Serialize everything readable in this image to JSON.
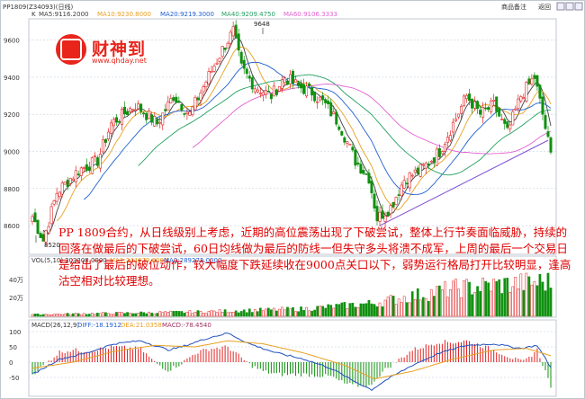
{
  "header": {
    "symbol": "PP1809(Z34093)(日线)",
    "k_label": "K",
    "ma5": "MA5:9116.2000",
    "ma10": "MA10:9230.8000",
    "ma20": "MA20:9219.3000",
    "ma40": "MA40:9209.4750",
    "ma60": "MA60:9106.3333",
    "links": [
      "商品备注",
      "返回"
    ]
  },
  "annotations": {
    "high": "9648",
    "low": "8520"
  },
  "logo": {
    "name": "财神到",
    "url": "www.qhday.net"
  },
  "commentary": "PP 1809合约，从日线级别上考虑，近期的高位震荡出现了下破尝试，整体上行节奏面临威胁，持续的回落在做最后的下破尝试，60日均线做为最后的防线一但失守多头将溃不成军，上周的最后一个交易日是给出了最后的破位动作，较大幅度下跌延续收在9000点关口以下，弱势运行格局打开比较明显，逢高沽空相对比较理想。",
  "volume_header": {
    "title": "VOL(5,10)",
    "v1": "303308.0000",
    "v2": "MA1:244679.6000",
    "v3": "MA2:289273.0000"
  },
  "macd_header": {
    "title": "MACD(26,12,9)",
    "diff": "DIFF:-18.1912",
    "dea": "DEA:21.0358",
    "macd": "MACD:-78.4540"
  },
  "colors": {
    "up": "#e02020",
    "down": "#109010",
    "ma5": "#404040",
    "ma10": "#e8a020",
    "ma20": "#2060d0",
    "ma40": "#20a060",
    "ma60": "#e060d0",
    "trend": "#8050d0",
    "grid": "#b9c9d9",
    "commentary": "#e00000"
  },
  "chart_data": {
    "type": "candlestick",
    "price_axis": {
      "ylim": [
        8520,
        9700
      ],
      "ticks": [
        8600,
        8800,
        9000,
        9200,
        9400,
        9600
      ]
    },
    "volume_axis": {
      "ticks_label": [
        "40万",
        "20万"
      ]
    },
    "macd_axis": {
      "ticks": [
        100,
        50,
        0,
        -50
      ]
    },
    "close_path": [
      [
        0,
        8650
      ],
      [
        4,
        8520
      ],
      [
        9,
        8780
      ],
      [
        17,
        8900
      ],
      [
        24,
        8950
      ],
      [
        29,
        9150
      ],
      [
        38,
        9250
      ],
      [
        46,
        9150
      ],
      [
        52,
        9300
      ],
      [
        58,
        9200
      ],
      [
        63,
        9350
      ],
      [
        70,
        9550
      ],
      [
        74,
        9648
      ],
      [
        77,
        9450
      ],
      [
        82,
        9350
      ],
      [
        88,
        9300
      ],
      [
        93,
        9400
      ],
      [
        98,
        9350
      ],
      [
        103,
        9320
      ],
      [
        108,
        9250
      ],
      [
        113,
        9150
      ],
      [
        119,
        8950
      ],
      [
        124,
        8860
      ],
      [
        127,
        8640
      ],
      [
        132,
        8700
      ],
      [
        137,
        8850
      ],
      [
        143,
        8900
      ],
      [
        150,
        9000
      ],
      [
        155,
        9150
      ],
      [
        160,
        9300
      ],
      [
        165,
        9200
      ],
      [
        170,
        9250
      ],
      [
        175,
        9100
      ],
      [
        180,
        9300
      ],
      [
        185,
        9400
      ],
      [
        188,
        9200
      ],
      [
        191,
        8980
      ]
    ],
    "trendline": [
      [
        128,
        8600
      ],
      [
        190,
        9060
      ]
    ],
    "volume_profile": [
      [
        0,
        0.05
      ],
      [
        60,
        0.12
      ],
      [
        100,
        0.2
      ],
      [
        125,
        0.35
      ],
      [
        140,
        0.55
      ],
      [
        155,
        0.75
      ],
      [
        170,
        0.85
      ],
      [
        191,
        0.95
      ]
    ],
    "macd_diff": [
      [
        0,
        -40
      ],
      [
        10,
        10
      ],
      [
        20,
        30
      ],
      [
        30,
        60
      ],
      [
        40,
        70
      ],
      [
        50,
        40
      ],
      [
        55,
        50
      ],
      [
        65,
        80
      ],
      [
        72,
        95
      ],
      [
        80,
        60
      ],
      [
        90,
        30
      ],
      [
        100,
        10
      ],
      [
        110,
        -20
      ],
      [
        118,
        -60
      ],
      [
        125,
        -90
      ],
      [
        130,
        -60
      ],
      [
        140,
        -10
      ],
      [
        150,
        30
      ],
      [
        160,
        55
      ],
      [
        170,
        60
      ],
      [
        180,
        45
      ],
      [
        186,
        55
      ],
      [
        191,
        -18
      ]
    ],
    "macd_dea": [
      [
        0,
        -20
      ],
      [
        15,
        0
      ],
      [
        30,
        35
      ],
      [
        45,
        55
      ],
      [
        60,
        50
      ],
      [
        72,
        70
      ],
      [
        85,
        60
      ],
      [
        100,
        30
      ],
      [
        115,
        -10
      ],
      [
        126,
        -55
      ],
      [
        140,
        -30
      ],
      [
        155,
        10
      ],
      [
        170,
        40
      ],
      [
        182,
        45
      ],
      [
        191,
        21
      ]
    ]
  }
}
